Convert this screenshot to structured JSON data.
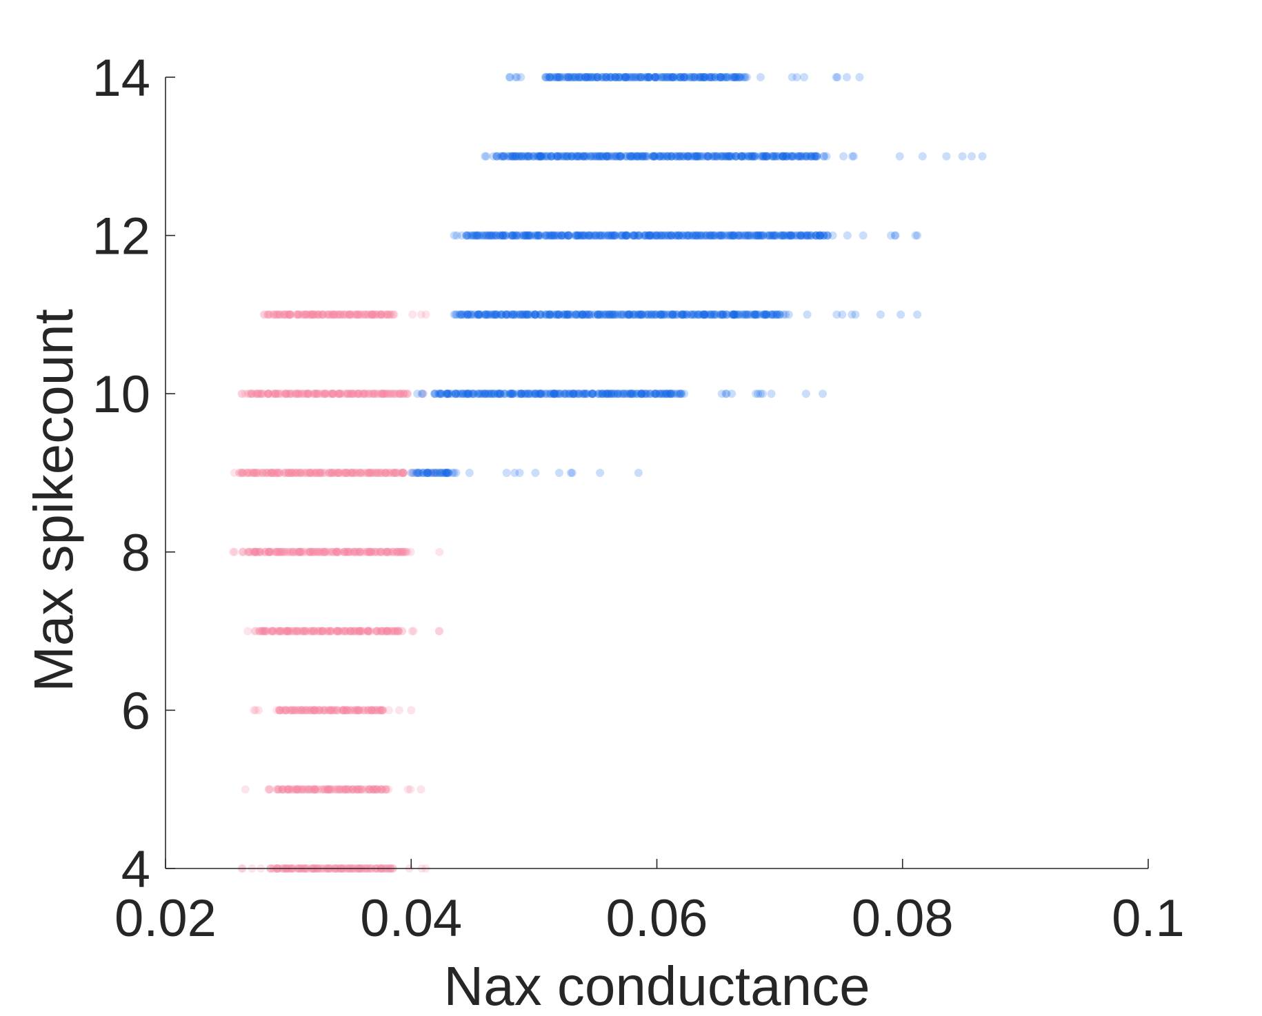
{
  "chart_data": {
    "type": "scatter",
    "title": "",
    "xlabel": "Nax conductance",
    "ylabel": "Max spikecount",
    "xlim": [
      0.02,
      0.1
    ],
    "ylim": [
      4,
      14
    ],
    "x_ticks": [
      "0.02",
      "0.04",
      "0.06",
      "0.08",
      "0.1"
    ],
    "y_ticks": [
      "4",
      "6",
      "8",
      "10",
      "12",
      "14"
    ],
    "grid": false,
    "legend": "none",
    "colors": {
      "pink": "#f7829e",
      "blue": "#0f62e6",
      "axis": "#262626"
    },
    "series": [
      {
        "color": "pink",
        "rows": [
          {
            "y": 4,
            "core": [
              0.0285,
              0.0385
            ],
            "tail": [
              0.0262,
              0.0412
            ]
          },
          {
            "y": 5,
            "core": [
              0.029,
              0.038
            ],
            "tail": [
              0.0265,
              0.0408
            ]
          },
          {
            "y": 6,
            "core": [
              0.0292,
              0.0378
            ],
            "tail": [
              0.0272,
              0.04
            ]
          },
          {
            "y": 7,
            "core": [
              0.0275,
              0.0392
            ],
            "tail": [
              0.0267,
              0.0423
            ]
          },
          {
            "y": 8,
            "core": [
              0.0265,
              0.0395
            ],
            "tail": [
              0.0255,
              0.0423
            ]
          },
          {
            "y": 9,
            "core": [
              0.0262,
              0.0395
            ],
            "tail": [
              0.0256,
              0.042
            ]
          },
          {
            "y": 10,
            "core": [
              0.0268,
              0.0395
            ],
            "tail": [
              0.0262,
              0.041
            ]
          },
          {
            "y": 11,
            "core": [
              0.0285,
              0.0385
            ],
            "tail": [
              0.028,
              0.0412
            ]
          }
        ]
      },
      {
        "color": "blue",
        "rows": [
          {
            "y": 9,
            "core": [
              0.0405,
              0.043
            ],
            "tail": [
              0.04,
              0.0585
            ]
          },
          {
            "y": 10,
            "core": [
              0.042,
              0.062
            ],
            "tail": [
              0.0405,
              0.0735
            ]
          },
          {
            "y": 11,
            "core": [
              0.044,
              0.07
            ],
            "tail": [
              0.0435,
              0.0812
            ]
          },
          {
            "y": 12,
            "core": [
              0.0445,
              0.074
            ],
            "tail": [
              0.0435,
              0.0812
            ]
          },
          {
            "y": 13,
            "core": [
              0.047,
              0.073
            ],
            "tail": [
              0.046,
              0.0865
            ]
          },
          {
            "y": 14,
            "core": [
              0.051,
              0.067
            ],
            "tail": [
              0.048,
              0.0765
            ]
          }
        ]
      }
    ]
  }
}
